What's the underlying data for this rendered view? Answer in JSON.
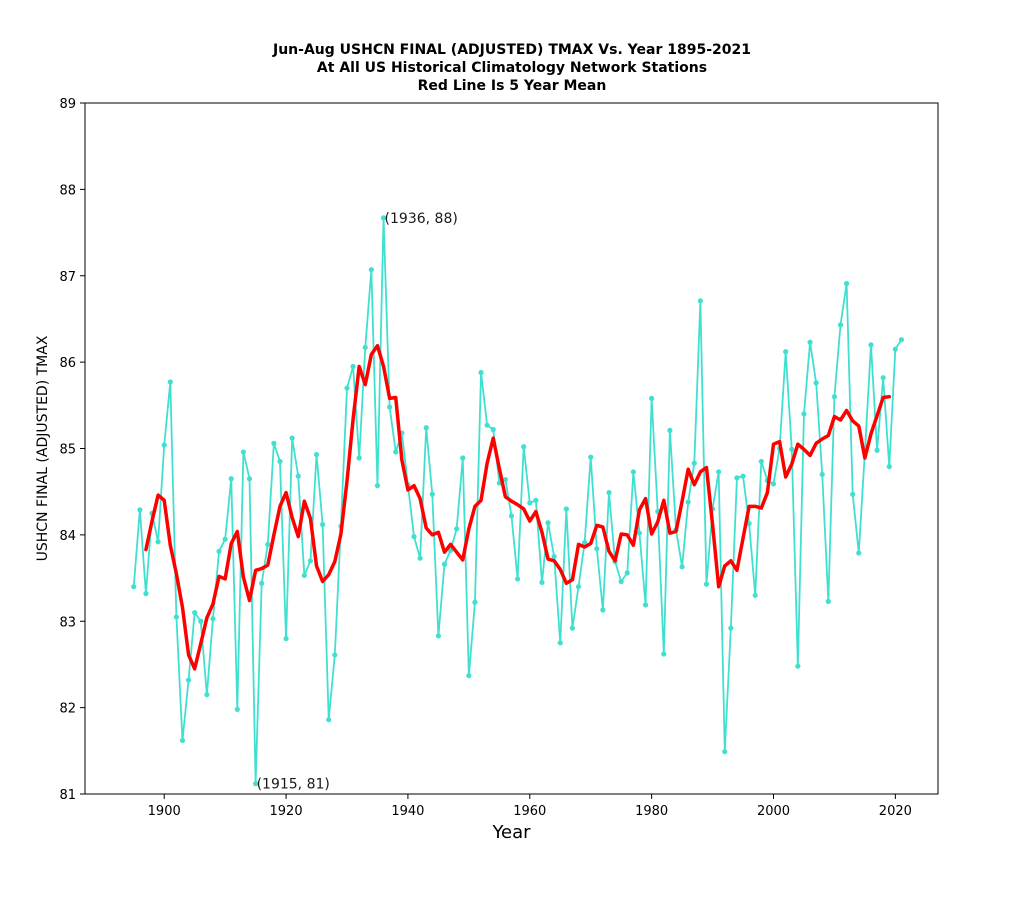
{
  "chart_data": {
    "type": "line",
    "title_lines": [
      "Jun-Aug USHCN FINAL (ADJUSTED) TMAX Vs. Year 1895-2021",
      "At All US Historical Climatology Network Stations",
      "Red Line Is 5 Year Mean"
    ],
    "xlabel": "Year",
    "ylabel": "USHCN FINAL (ADJUSTED) TMAX",
    "xlim": [
      1887,
      2027
    ],
    "ylim": [
      81,
      89
    ],
    "xticks": [
      1900,
      1920,
      1940,
      1960,
      1980,
      2000,
      2020
    ],
    "yticks": [
      81,
      82,
      83,
      84,
      85,
      86,
      87,
      88,
      89
    ],
    "grid": false,
    "series": [
      {
        "color": "#40e0d0",
        "marker": "dot",
        "x": [
          1895,
          1896,
          1897,
          1898,
          1899,
          1900,
          1901,
          1902,
          1903,
          1904,
          1905,
          1906,
          1907,
          1908,
          1909,
          1910,
          1911,
          1912,
          1913,
          1914,
          1915,
          1916,
          1917,
          1918,
          1919,
          1920,
          1921,
          1922,
          1923,
          1924,
          1925,
          1926,
          1927,
          1928,
          1929,
          1930,
          1931,
          1932,
          1933,
          1934,
          1935,
          1936,
          1937,
          1938,
          1939,
          1940,
          1941,
          1942,
          1943,
          1944,
          1945,
          1946,
          1947,
          1948,
          1949,
          1950,
          1951,
          1952,
          1953,
          1954,
          1955,
          1956,
          1957,
          1958,
          1959,
          1960,
          1961,
          1962,
          1963,
          1964,
          1965,
          1966,
          1967,
          1968,
          1969,
          1970,
          1971,
          1972,
          1973,
          1974,
          1975,
          1976,
          1977,
          1978,
          1979,
          1980,
          1981,
          1982,
          1983,
          1984,
          1985,
          1986,
          1987,
          1988,
          1989,
          1990,
          1991,
          1992,
          1993,
          1994,
          1995,
          1996,
          1997,
          1998,
          1999,
          2000,
          2001,
          2002,
          2003,
          2004,
          2005,
          2006,
          2007,
          2008,
          2009,
          2010,
          2011,
          2012,
          2013,
          2014,
          2015,
          2016,
          2017,
          2018,
          2019,
          2020,
          2021
        ],
        "values": [
          83.4,
          84.29,
          83.32,
          84.25,
          83.92,
          85.04,
          85.77,
          83.05,
          81.62,
          82.32,
          83.1,
          83.0,
          82.15,
          83.03,
          83.81,
          83.95,
          84.65,
          81.98,
          84.96,
          84.65,
          81.12,
          83.44,
          83.89,
          85.06,
          84.85,
          82.8,
          85.12,
          84.68,
          83.53,
          83.7,
          84.93,
          84.12,
          81.86,
          82.61,
          84.1,
          85.7,
          85.95,
          84.89,
          86.17,
          87.07,
          84.57,
          87.67,
          85.48,
          84.96,
          85.18,
          84.58,
          83.98,
          83.73,
          85.24,
          84.47,
          82.83,
          83.66,
          83.82,
          84.07,
          84.89,
          82.37,
          83.22,
          85.88,
          85.27,
          85.22,
          84.6,
          84.64,
          84.22,
          83.49,
          85.02,
          84.37,
          84.4,
          83.45,
          84.14,
          83.75,
          82.75,
          84.3,
          82.92,
          83.4,
          83.91,
          84.9,
          83.84,
          83.13,
          84.49,
          83.69,
          83.46,
          83.56,
          84.73,
          84.02,
          83.19,
          85.58,
          84.27,
          82.62,
          85.21,
          84.06,
          83.63,
          84.38,
          84.83,
          86.71,
          83.43,
          84.3,
          84.73,
          81.49,
          82.92,
          84.66,
          84.68,
          84.13,
          83.3,
          84.85,
          84.63,
          84.59,
          85.0,
          86.12,
          84.99,
          82.48,
          85.4,
          86.23,
          85.76,
          84.7,
          83.23,
          85.6,
          86.43,
          86.91,
          84.47,
          83.79,
          84.96,
          86.2,
          84.98,
          85.82,
          84.79,
          86.15,
          86.26
        ]
      },
      {
        "color": "#ff0000",
        "marker": "none",
        "x": [
          1897,
          1898,
          1899,
          1900,
          1901,
          1902,
          1903,
          1904,
          1905,
          1906,
          1907,
          1908,
          1909,
          1910,
          1911,
          1912,
          1913,
          1914,
          1915,
          1916,
          1917,
          1918,
          1919,
          1920,
          1921,
          1922,
          1923,
          1924,
          1925,
          1926,
          1927,
          1928,
          1929,
          1930,
          1931,
          1932,
          1933,
          1934,
          1935,
          1936,
          1937,
          1938,
          1939,
          1940,
          1941,
          1942,
          1943,
          1944,
          1945,
          1946,
          1947,
          1948,
          1949,
          1950,
          1951,
          1952,
          1953,
          1954,
          1955,
          1956,
          1957,
          1958,
          1959,
          1960,
          1961,
          1962,
          1963,
          1964,
          1965,
          1966,
          1967,
          1968,
          1969,
          1970,
          1971,
          1972,
          1973,
          1974,
          1975,
          1976,
          1977,
          1978,
          1979,
          1980,
          1981,
          1982,
          1983,
          1984,
          1985,
          1986,
          1987,
          1988,
          1989,
          1990,
          1991,
          1992,
          1993,
          1994,
          1995,
          1996,
          1997,
          1998,
          1999,
          2000,
          2001,
          2002,
          2003,
          2004,
          2005,
          2006,
          2007,
          2008,
          2009,
          2010,
          2011,
          2012,
          2013,
          2014,
          2015,
          2016,
          2017,
          2018,
          2019
        ],
        "values": [
          83.83,
          84.16,
          84.46,
          84.4,
          83.88,
          83.55,
          83.16,
          82.61,
          82.45,
          82.74,
          83.04,
          83.2,
          83.52,
          83.49,
          83.9,
          84.04,
          83.51,
          83.24,
          83.59,
          83.61,
          83.65,
          84.0,
          84.33,
          84.49,
          84.2,
          83.98,
          84.39,
          84.19,
          83.64,
          83.46,
          83.54,
          83.69,
          84.01,
          84.62,
          85.34,
          85.95,
          85.74,
          86.09,
          86.19,
          85.95,
          85.58,
          85.59,
          84.87,
          84.52,
          84.57,
          84.42,
          84.08,
          84.0,
          84.03,
          83.8,
          83.89,
          83.8,
          83.71,
          84.07,
          84.33,
          84.4,
          84.83,
          85.12,
          84.77,
          84.44,
          84.39,
          84.35,
          84.3,
          84.16,
          84.27,
          84.03,
          83.72,
          83.7,
          83.6,
          83.44,
          83.48,
          83.89,
          83.86,
          83.9,
          84.11,
          84.09,
          83.81,
          83.7,
          84.01,
          84.0,
          83.88,
          84.29,
          84.42,
          84.01,
          84.15,
          84.4,
          84.02,
          84.04,
          84.39,
          84.76,
          84.58,
          84.73,
          84.78,
          84.12,
          83.4,
          83.64,
          83.7,
          83.59,
          83.96,
          84.33,
          84.33,
          84.31,
          84.49,
          85.05,
          85.08,
          84.67,
          84.82,
          85.05,
          84.99,
          84.92,
          85.06,
          85.11,
          85.15,
          85.37,
          85.33,
          85.44,
          85.32,
          85.26,
          84.89,
          85.17,
          85.38,
          85.59,
          85.6
        ]
      }
    ],
    "annotations": [
      {
        "text": "(1936, 88)",
        "x": 1936,
        "y": 87.67
      },
      {
        "text": "(1915, 81)",
        "x": 1915,
        "y": 81.12
      }
    ]
  }
}
